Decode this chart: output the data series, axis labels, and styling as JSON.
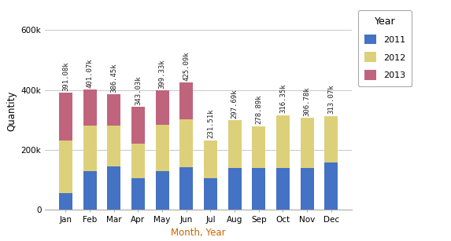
{
  "months": [
    "Jan",
    "Feb",
    "Mar",
    "Apr",
    "May",
    "Jun",
    "Jul",
    "Aug",
    "Sep",
    "Oct",
    "Nov",
    "Dec"
  ],
  "year2011": [
    55000,
    130000,
    145000,
    105000,
    128000,
    142000,
    105000,
    140000,
    138000,
    138000,
    138000,
    158000
  ],
  "year2012": [
    175000,
    150000,
    135000,
    115000,
    155000,
    160000,
    127000,
    158000,
    141000,
    178000,
    169000,
    155000
  ],
  "year2013": [
    161000,
    121000,
    106000,
    123000,
    116000,
    123000,
    0,
    0,
    0,
    0,
    0,
    0
  ],
  "totals": [
    "391.08k",
    "401.07k",
    "386.45k",
    "343.03k",
    "399.33k",
    "425.09k",
    "231.51k",
    "297.69k",
    "278.89k",
    "316.35k",
    "306.78k",
    "313.07k"
  ],
  "color_2011": "#4472c4",
  "color_2012": "#ddd07a",
  "color_2013": "#c0647d",
  "bg_color": "#ffffff",
  "grid_color": "#c8c8c8",
  "ylabel": "Quantity",
  "xlabel": "Month, Year",
  "legend_title": "Year",
  "legend_labels": [
    "2011",
    "2012",
    "2013"
  ],
  "ylim": [
    0,
    660000
  ],
  "yticks": [
    0,
    200000,
    400000,
    600000
  ],
  "xlabel_color": "#cc6600"
}
